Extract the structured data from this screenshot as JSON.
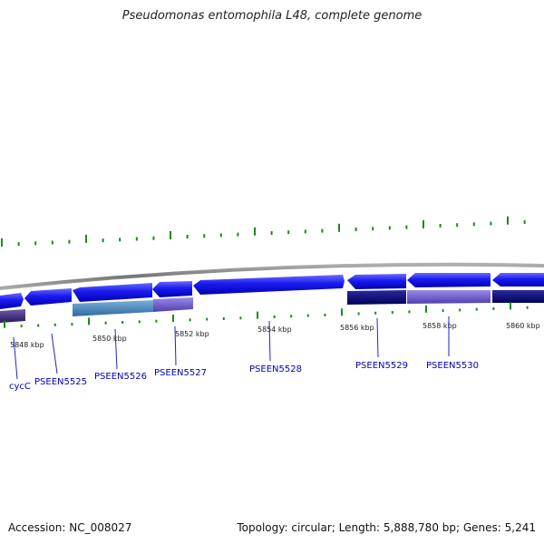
{
  "header": {
    "title": "Pseudomonas entomophila L48, complete genome"
  },
  "footer": {
    "accession": "Accession: NC_008027",
    "topology": "Topology: circular; Length: 5,888,780 bp; Genes: 5,241"
  },
  "ruler": {
    "labels": [
      "5848 kbp",
      "5850 kbp",
      "5852 kbp",
      "5854 kbp",
      "5856 kbp",
      "5858 kbp",
      "5860 kbp"
    ]
  },
  "genes": [
    {
      "name": "cycC"
    },
    {
      "name": "PSEEN5525"
    },
    {
      "name": "PSEEN5526"
    },
    {
      "name": "PSEEN5527"
    },
    {
      "name": "PSEEN5528"
    },
    {
      "name": "PSEEN5529"
    },
    {
      "name": "PSEEN5530"
    }
  ],
  "colors": {
    "backbone": "#888888",
    "forward_gene": "#1010ee",
    "gc_tick": "#1a8a1a",
    "label_line": "#2222cc",
    "cog_dark": "#0a0a80",
    "cog_steel": "#4a88c0",
    "cog_violet": "#7060cc"
  }
}
